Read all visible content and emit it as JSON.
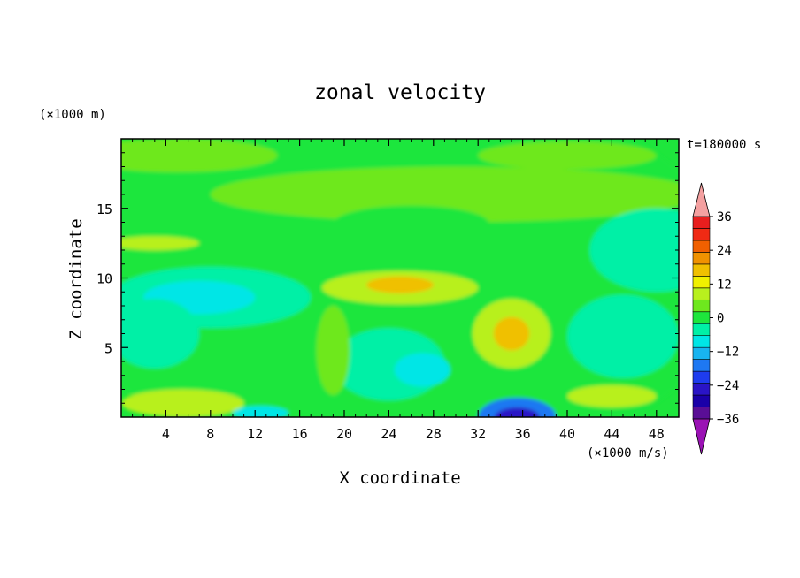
{
  "chart_data": {
    "type": "heatmap",
    "title": "zonal velocity",
    "xlabel": "X coordinate",
    "ylabel": "Z coordinate",
    "y_units": "(×1000 m)",
    "x_units": "(×1000 m/s)",
    "time_label": "t=180000 s",
    "x_range": [
      0,
      50
    ],
    "y_range": [
      0,
      20
    ],
    "x_ticks": [
      "4",
      "8",
      "12",
      "16",
      "20",
      "24",
      "28",
      "32",
      "36",
      "40",
      "44",
      "48"
    ],
    "y_ticks": [
      "5",
      "10",
      "15"
    ],
    "colorbar": {
      "tick_labels": [
        "36",
        "24",
        "12",
        "0",
        "−12",
        "−24",
        "−36"
      ],
      "levels": [
        -36,
        -30,
        -24,
        -18,
        -12,
        -6,
        0,
        6,
        12,
        18,
        24,
        30,
        36
      ],
      "colors": [
        "#5a0e96",
        "#1a00a8",
        "#2a14c6",
        "#1e3cee",
        "#1e78f2",
        "#18b4f0",
        "#00e6e6",
        "#00f0a6",
        "#1ee63c",
        "#6ee81e",
        "#b8f01e",
        "#f0f000",
        "#f0c000",
        "#f09200",
        "#f06000",
        "#f02a14",
        "#e81e1e"
      ],
      "under_color": "#9a12b4",
      "over_color": "#f4a0a0"
    },
    "regions": [
      {
        "x": 25,
        "y": 10,
        "rx": 30,
        "ry": 14,
        "value": 0
      },
      {
        "x": 30,
        "y": 16,
        "rx": 22,
        "ry": 2.0,
        "value": 3
      },
      {
        "x": 5,
        "y": 18.8,
        "rx": 9,
        "ry": 1.2,
        "value": 3
      },
      {
        "x": 40,
        "y": 18.8,
        "rx": 8,
        "ry": 1.0,
        "value": 3
      },
      {
        "x": 26,
        "y": 13.9,
        "rx": 7,
        "ry": 1.3,
        "value": 2
      },
      {
        "x": 8,
        "y": 8.6,
        "rx": 9,
        "ry": 2.2,
        "value": -6
      },
      {
        "x": 7,
        "y": 8.6,
        "rx": 5,
        "ry": 1.2,
        "value": -9
      },
      {
        "x": 24,
        "y": 3.8,
        "rx": 5,
        "ry": 2.6,
        "value": -6
      },
      {
        "x": 27,
        "y": 3.4,
        "rx": 2.5,
        "ry": 1.2,
        "value": -9
      },
      {
        "x": 3,
        "y": 6.0,
        "rx": 4,
        "ry": 2.5,
        "value": -3
      },
      {
        "x": 45,
        "y": 5.8,
        "rx": 5,
        "ry": 3.0,
        "value": -3
      },
      {
        "x": 48,
        "y": 12,
        "rx": 6,
        "ry": 3.0,
        "value": -3
      },
      {
        "x": 35,
        "y": 6.0,
        "rx": 3.5,
        "ry": 2.5,
        "value": 9
      },
      {
        "x": 35,
        "y": 6.0,
        "rx": 1.6,
        "ry": 1.2,
        "value": 15
      },
      {
        "x": 25,
        "y": 9.3,
        "rx": 7,
        "ry": 1.2,
        "value": 9
      },
      {
        "x": 25,
        "y": 9.5,
        "rx": 3,
        "ry": 0.6,
        "value": 15
      },
      {
        "x": 19,
        "y": 4.8,
        "rx": 1.5,
        "ry": 3.2,
        "value": 4
      },
      {
        "x": 5.5,
        "y": 1.0,
        "rx": 5.5,
        "ry": 1.0,
        "value": 9
      },
      {
        "x": 3,
        "y": 12.5,
        "rx": 4,
        "ry": 0.5,
        "value": 8
      },
      {
        "x": 44,
        "y": 1.5,
        "rx": 4,
        "ry": 0.8,
        "value": 7
      },
      {
        "x": 35.5,
        "y": 0.0,
        "rx": 3.5,
        "ry": 1.4,
        "value": -18
      },
      {
        "x": 35.5,
        "y": 0.0,
        "rx": 2.0,
        "ry": 0.7,
        "value": -27
      },
      {
        "x": 12.5,
        "y": 0.3,
        "rx": 2.5,
        "ry": 0.5,
        "value": -9
      }
    ]
  }
}
